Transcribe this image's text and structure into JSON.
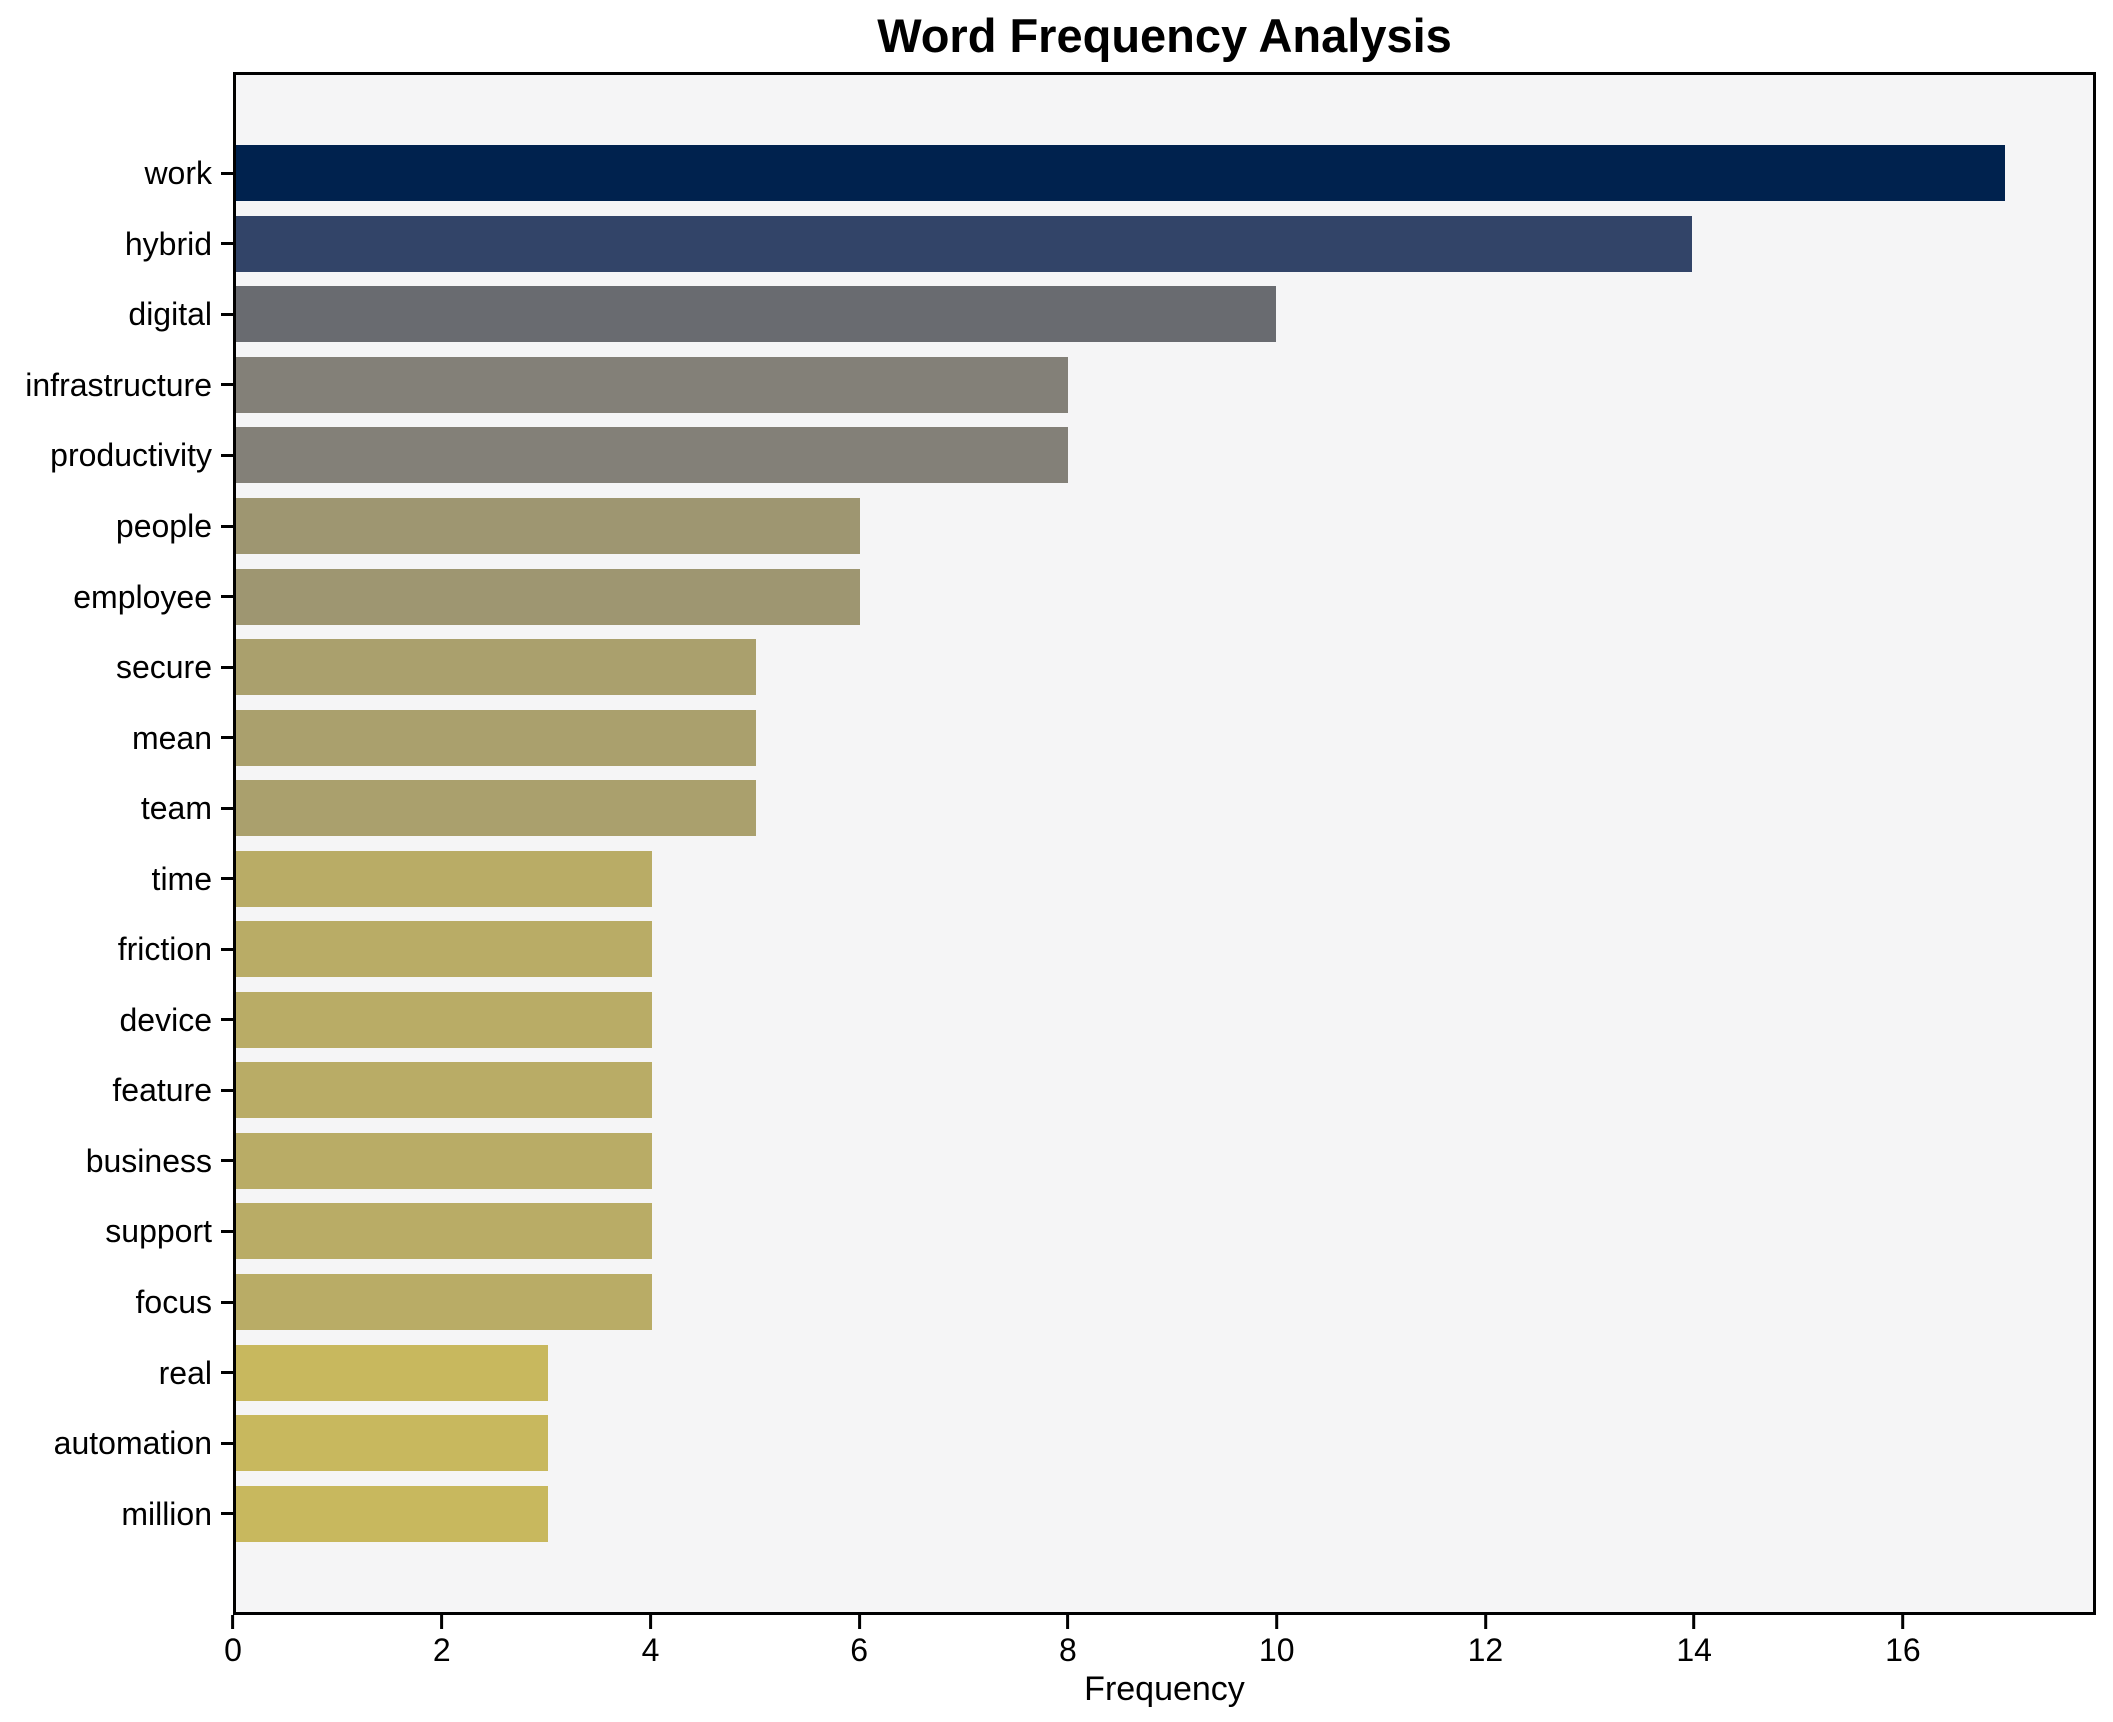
{
  "chart_data": {
    "type": "bar",
    "orientation": "horizontal",
    "title": "Word Frequency Analysis",
    "xlabel": "Frequency",
    "ylabel": "",
    "categories": [
      "work",
      "hybrid",
      "digital",
      "infrastructure",
      "productivity",
      "people",
      "employee",
      "secure",
      "mean",
      "team",
      "time",
      "friction",
      "device",
      "feature",
      "business",
      "support",
      "focus",
      "real",
      "automation",
      "million"
    ],
    "values": [
      17,
      14,
      10,
      8,
      8,
      6,
      6,
      5,
      5,
      5,
      4,
      4,
      4,
      4,
      4,
      4,
      4,
      3,
      3,
      3
    ],
    "bar_colors": [
      "#00224e",
      "#324468",
      "#696b70",
      "#838078",
      "#838078",
      "#9e9671",
      "#9e9671",
      "#aaa06d",
      "#aaa06d",
      "#aaa06d",
      "#b9ac66",
      "#b9ac66",
      "#b9ac66",
      "#b9ac66",
      "#b9ac66",
      "#b9ac66",
      "#b9ac66",
      "#c8b85e",
      "#c8b85e",
      "#c8b85e"
    ],
    "xticks": [
      0,
      2,
      4,
      6,
      8,
      10,
      12,
      14,
      16
    ],
    "xlim": [
      0,
      17.85
    ],
    "grid": false,
    "legend": false,
    "plot_background": "#f5f5f6",
    "figure_background": "#ffffff",
    "spine_color": "#000000",
    "text_color": "#000000"
  }
}
